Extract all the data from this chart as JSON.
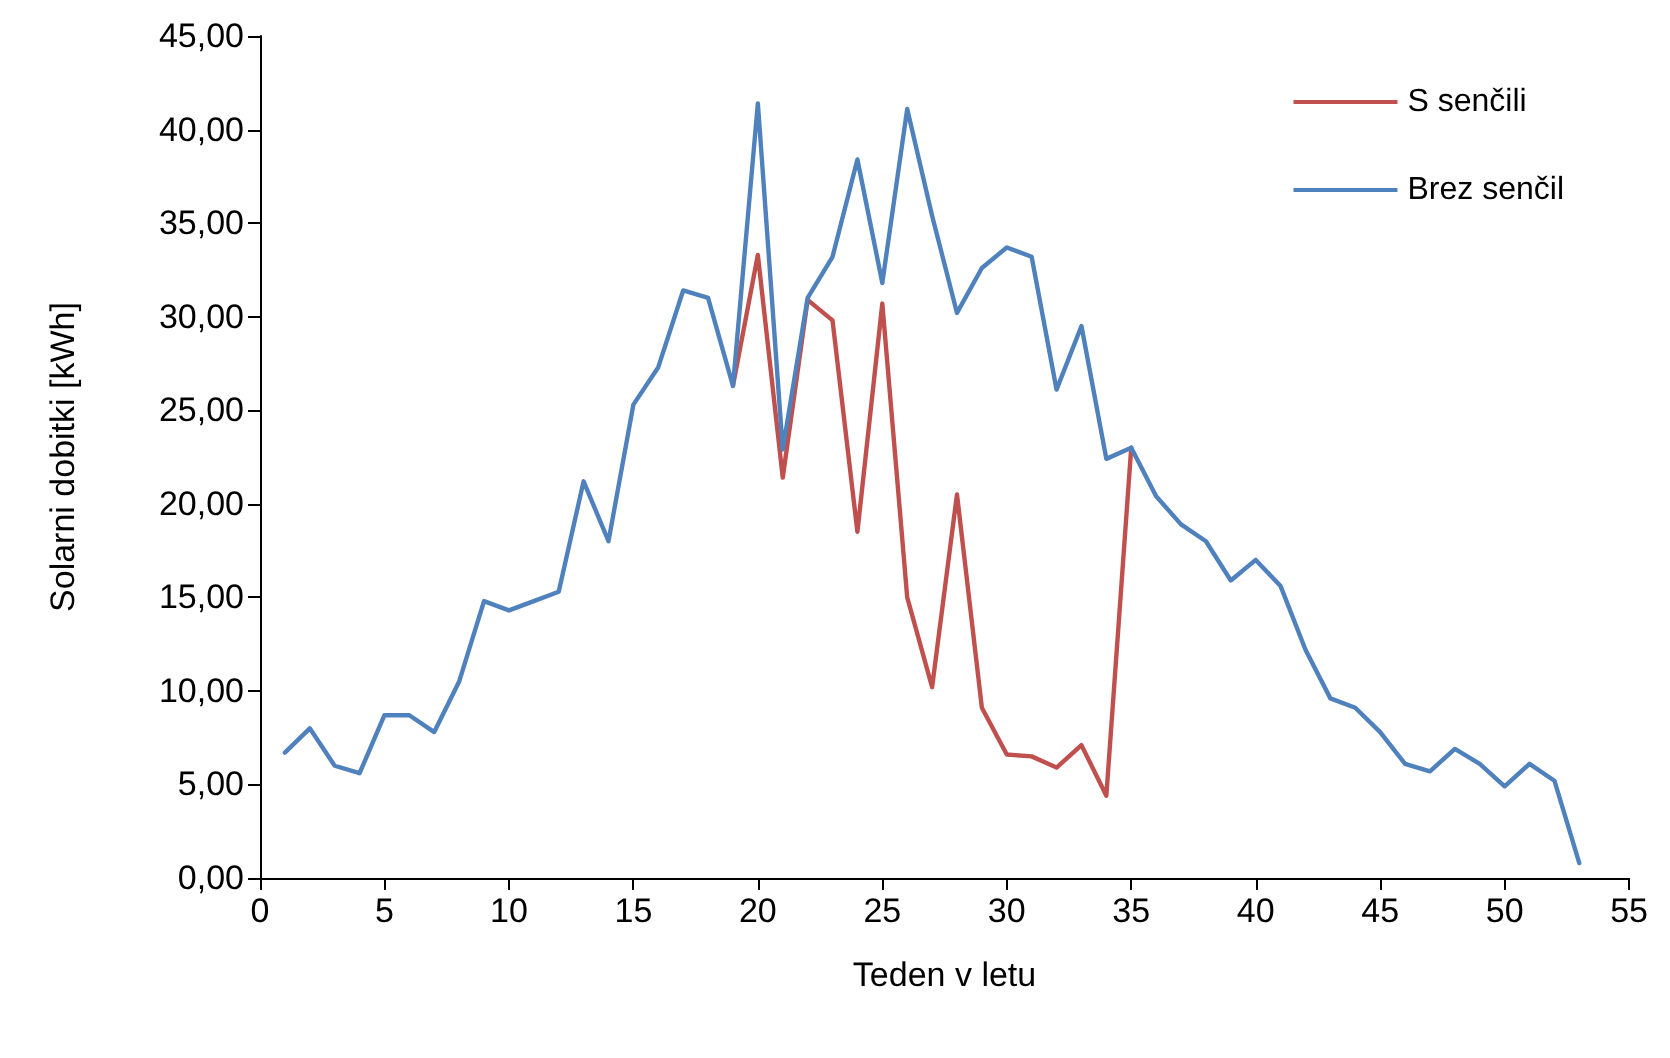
{
  "chart_data": {
    "type": "line",
    "xlabel": "Teden v letu",
    "ylabel": "Solarni dobitki [kWh]",
    "x": [
      1,
      2,
      3,
      4,
      5,
      6,
      7,
      8,
      9,
      10,
      11,
      12,
      13,
      14,
      15,
      16,
      17,
      18,
      19,
      20,
      21,
      22,
      23,
      24,
      25,
      26,
      27,
      28,
      29,
      30,
      31,
      32,
      33,
      34,
      35,
      36,
      37,
      38,
      39,
      40,
      41,
      42,
      43,
      44,
      45,
      46,
      47,
      48,
      49,
      50,
      51,
      52,
      53
    ],
    "series": [
      {
        "name": "S senčili",
        "color": "#c0504d",
        "values": [
          null,
          null,
          null,
          null,
          null,
          null,
          null,
          null,
          null,
          null,
          null,
          null,
          null,
          null,
          null,
          null,
          null,
          null,
          26.3,
          33.3,
          21.4,
          30.9,
          29.8,
          18.5,
          30.7,
          15.0,
          10.2,
          20.5,
          9.1,
          6.6,
          6.5,
          5.9,
          7.1,
          4.4,
          23.0,
          null,
          null,
          null,
          null,
          null,
          null,
          null,
          null,
          null,
          null,
          null,
          null,
          null,
          null,
          null,
          null,
          null,
          null
        ]
      },
      {
        "name": "Brez senčil",
        "color": "#4f81bd",
        "values": [
          6.7,
          8.0,
          6.0,
          5.6,
          8.7,
          8.7,
          7.8,
          10.5,
          14.8,
          14.3,
          14.8,
          15.3,
          21.2,
          18.0,
          25.3,
          27.3,
          31.4,
          31.0,
          26.3,
          41.4,
          22.9,
          31.0,
          33.2,
          38.4,
          31.8,
          41.1,
          35.4,
          30.2,
          32.6,
          33.7,
          33.2,
          26.1,
          29.5,
          22.4,
          23.0,
          20.4,
          18.9,
          18.0,
          15.9,
          17.0,
          15.6,
          12.2,
          9.6,
          9.1,
          7.8,
          6.1,
          5.7,
          6.9,
          6.1,
          4.9,
          6.1,
          5.2,
          0.8
        ]
      }
    ],
    "xlim": [
      0,
      55
    ],
    "xticks": [
      0,
      5,
      10,
      15,
      20,
      25,
      30,
      35,
      40,
      45,
      50,
      55
    ],
    "ylim": [
      0,
      45
    ],
    "yticks": [
      {
        "value": 0,
        "label": "0,00"
      },
      {
        "value": 5,
        "label": "5,00"
      },
      {
        "value": 10,
        "label": "10,00"
      },
      {
        "value": 15,
        "label": "15,00"
      },
      {
        "value": 20,
        "label": "20,00"
      },
      {
        "value": 25,
        "label": "25,00"
      },
      {
        "value": 30,
        "label": "30,00"
      },
      {
        "value": 35,
        "label": "35,00"
      },
      {
        "value": 40,
        "label": "40,00"
      },
      {
        "value": 45,
        "label": "45,00"
      }
    ],
    "grid": false,
    "legend": "top right",
    "marker": "none",
    "line_style": "solid"
  }
}
